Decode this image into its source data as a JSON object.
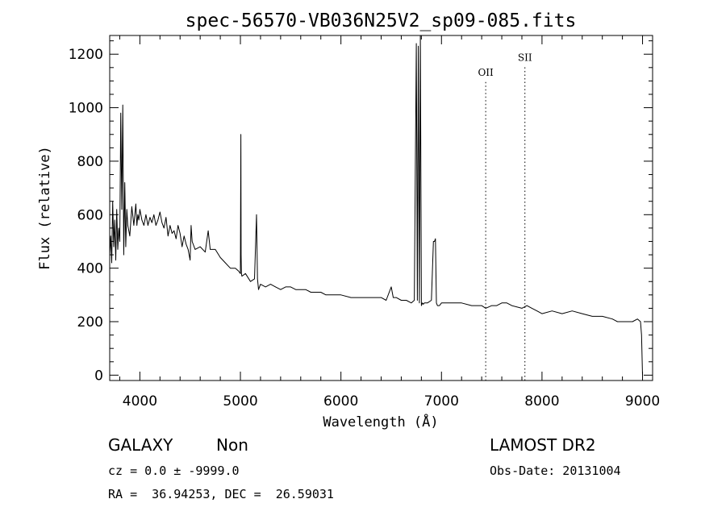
{
  "chart_data": {
    "type": "line",
    "title": "spec-56570-VB036N25V2_sp09-085.fits",
    "xlabel": "Wavelength (Å)",
    "ylabel": "Flux (relative)",
    "xlim": [
      3700,
      9100
    ],
    "ylim": [
      -20,
      1270
    ],
    "xticks": [
      4000,
      5000,
      6000,
      7000,
      8000,
      9000
    ],
    "xtick_labels": [
      "4000",
      "5000",
      "6000",
      "7000",
      "8000",
      "9000"
    ],
    "yticks": [
      0,
      200,
      400,
      600,
      800,
      1000,
      1200
    ],
    "ytick_labels": [
      "0",
      "200",
      "400",
      "600",
      "800",
      "1000",
      "1200"
    ],
    "x_minor_step": 200,
    "y_minor_step": 50,
    "grid": false,
    "line_markers": [
      {
        "label": "OII",
        "x": 7440,
        "label_y": 1120
      },
      {
        "label": "SII",
        "x": 7830,
        "label_y": 1175
      }
    ],
    "series": [
      {
        "x": [
          3700,
          3710,
          3720,
          3730,
          3740,
          3750,
          3760,
          3770,
          3780,
          3790,
          3800,
          3810,
          3820,
          3830,
          3840,
          3850,
          3860,
          3870,
          3880,
          3890,
          3900,
          3920,
          3940,
          3960,
          3970,
          3980,
          3990,
          4000,
          4020,
          4040,
          4060,
          4080,
          4100,
          4120,
          4140,
          4160,
          4180,
          4200,
          4220,
          4240,
          4260,
          4280,
          4300,
          4320,
          4340,
          4360,
          4380,
          4400,
          4420,
          4440,
          4460,
          4480,
          4500,
          4510,
          4520,
          4550,
          4600,
          4650,
          4680,
          4700,
          4750,
          4800,
          4850,
          4900,
          4950,
          4980,
          5000,
          5005,
          5007,
          5010,
          5015,
          5050,
          5100,
          5140,
          5160,
          5170,
          5180,
          5200,
          5250,
          5300,
          5350,
          5400,
          5450,
          5500,
          5550,
          5600,
          5650,
          5700,
          5750,
          5800,
          5850,
          5900,
          5950,
          6000,
          6100,
          6200,
          6300,
          6400,
          6450,
          6500,
          6520,
          6550,
          6600,
          6650,
          6700,
          6730,
          6750,
          6760,
          6770,
          6780,
          6790,
          6800,
          6810,
          6820,
          6830,
          6860,
          6900,
          6920,
          6930,
          6940,
          6950,
          6960,
          6980,
          7000,
          7100,
          7200,
          7300,
          7400,
          7440,
          7500,
          7550,
          7600,
          7650,
          7700,
          7800,
          7850,
          7900,
          7950,
          8000,
          8100,
          8200,
          8300,
          8400,
          8500,
          8600,
          8700,
          8750,
          8800,
          8850,
          8900,
          8950,
          8980,
          8990,
          9000
        ],
        "y": [
          450,
          520,
          420,
          650,
          480,
          580,
          430,
          620,
          470,
          550,
          500,
          980,
          620,
          1010,
          450,
          720,
          480,
          620,
          560,
          540,
          520,
          630,
          560,
          640,
          560,
          600,
          580,
          620,
          580,
          560,
          600,
          560,
          590,
          570,
          600,
          560,
          580,
          610,
          570,
          550,
          590,
          520,
          560,
          530,
          540,
          510,
          560,
          530,
          480,
          520,
          490,
          470,
          430,
          560,
          500,
          470,
          480,
          460,
          540,
          470,
          470,
          440,
          420,
          400,
          400,
          390,
          380,
          900,
          450,
          380,
          370,
          380,
          350,
          360,
          600,
          360,
          320,
          340,
          330,
          340,
          330,
          320,
          330,
          330,
          320,
          320,
          320,
          310,
          310,
          310,
          300,
          300,
          300,
          300,
          290,
          290,
          290,
          290,
          280,
          330,
          290,
          290,
          280,
          280,
          270,
          280,
          1240,
          280,
          1230,
          270,
          1270,
          260,
          270,
          265,
          270,
          270,
          280,
          500,
          500,
          510,
          270,
          260,
          260,
          270,
          270,
          270,
          260,
          260,
          250,
          260,
          260,
          270,
          270,
          260,
          250,
          260,
          250,
          240,
          230,
          240,
          230,
          240,
          230,
          220,
          220,
          210,
          200,
          200,
          200,
          200,
          210,
          200,
          150,
          0
        ]
      }
    ]
  },
  "footer": {
    "object_class": "GALAXY",
    "subclass": "Non",
    "survey": "LAMOST DR2",
    "redshift_line": "cz = 0.0 ± -9999.0",
    "obs_date_line": "Obs-Date: 20131004",
    "coords_line": "RA =  36.94253, DEC =  26.59031"
  },
  "colors": {
    "background": "#ffffff",
    "foreground": "#000000"
  }
}
